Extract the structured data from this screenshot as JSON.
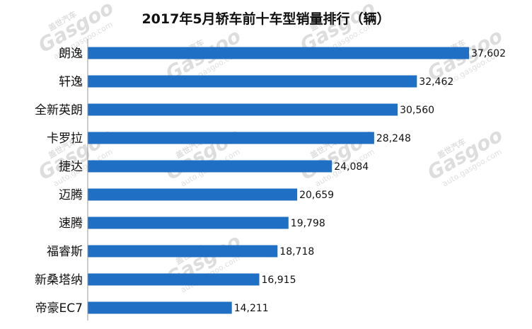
{
  "chart_data": {
    "type": "bar",
    "orientation": "horizontal",
    "title": "2017年5月轿车前十车型销量排行（辆）",
    "categories": [
      "朗逸",
      "轩逸",
      "全新英朗",
      "卡罗拉",
      "捷达",
      "迈腾",
      "速腾",
      "福睿斯",
      "新桑塔纳",
      "帝豪EC7"
    ],
    "values": [
      37602,
      32462,
      30560,
      28248,
      24084,
      20659,
      19798,
      18718,
      16915,
      14211
    ],
    "value_labels": [
      "37,602",
      "32,462",
      "30,560",
      "28,248",
      "24,084",
      "20,659",
      "19,798",
      "18,718",
      "16,915",
      "14,211"
    ],
    "xlim": [
      0,
      37602
    ],
    "bar_color": "#1f6fc5",
    "grid": false,
    "legend": "none"
  },
  "watermark": {
    "brand": "Gasgoo",
    "cn": "盖世汽车",
    "url": "auto.gasgoo.com"
  }
}
